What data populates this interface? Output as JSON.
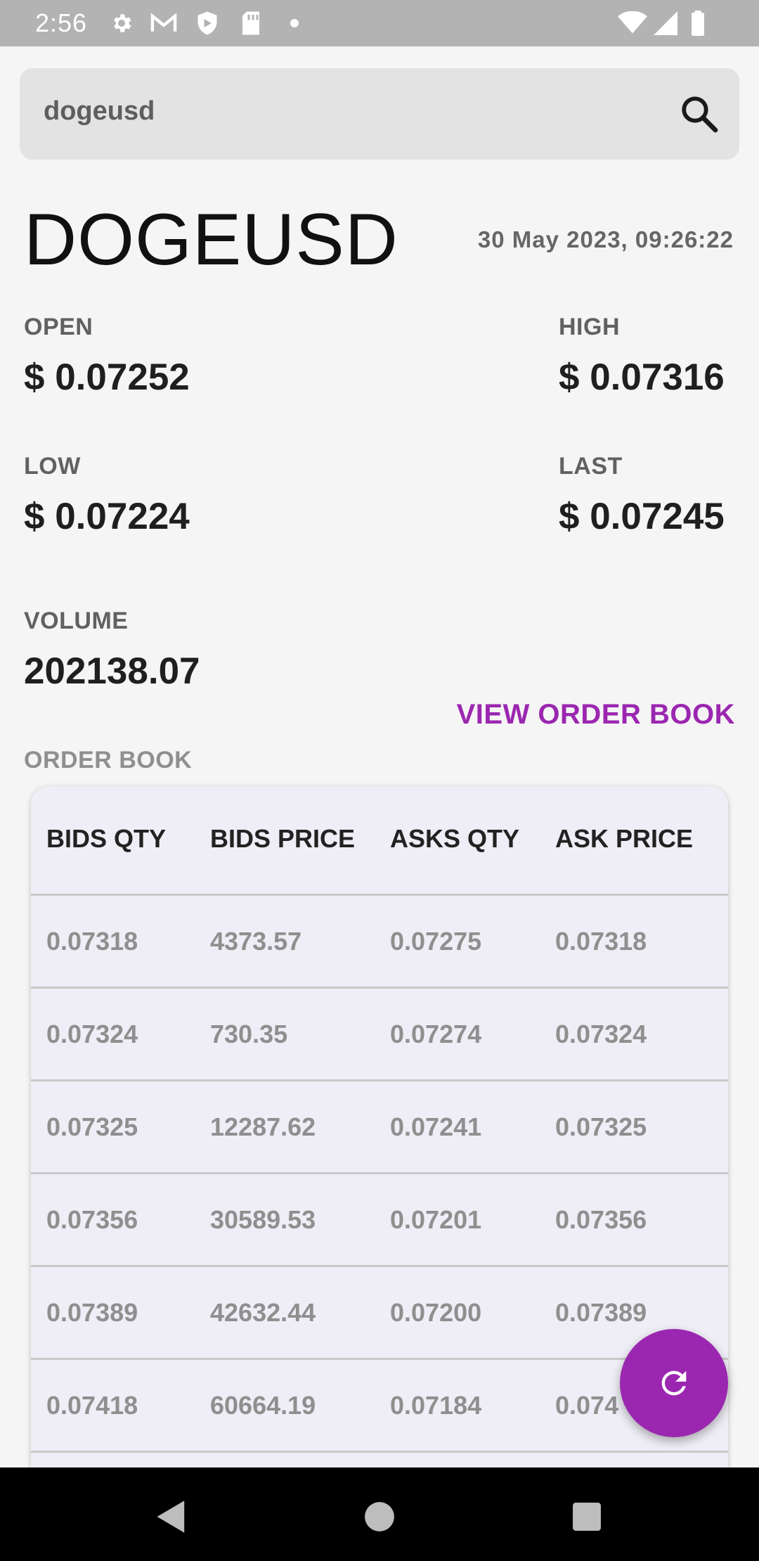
{
  "status_bar": {
    "time": "2:56",
    "icons": [
      "settings-icon",
      "gmail-icon",
      "shield-icon",
      "sd-card-icon",
      "dot-icon",
      "wifi-icon",
      "signal-icon",
      "battery-icon"
    ]
  },
  "search": {
    "value": "dogeusd",
    "icon": "search-icon"
  },
  "ticker": {
    "symbol": "DOGEUSD",
    "timestamp": "30 May 2023, 09:26:22",
    "open_label": "OPEN",
    "open_value": "$ 0.07252",
    "high_label": "HIGH",
    "high_value": "$ 0.07316",
    "low_label": "LOW",
    "low_value": "$ 0.07224",
    "last_label": "LAST",
    "last_value": "$ 0.07245",
    "volume_label": "VOLUME",
    "volume_value": "202138.07"
  },
  "actions": {
    "view_order_book": "VIEW ORDER BOOK"
  },
  "order_book": {
    "section_label": "ORDER BOOK",
    "headers": [
      "BIDS QTY",
      "BIDS PRICE",
      "ASKS QTY",
      "ASK PRICE"
    ],
    "rows": [
      [
        "0.07318",
        "4373.57",
        "0.07275",
        "0.07318"
      ],
      [
        "0.07324",
        "730.35",
        "0.07274",
        "0.07324"
      ],
      [
        "0.07325",
        "12287.62",
        "0.07241",
        "0.07325"
      ],
      [
        "0.07356",
        "30589.53",
        "0.07201",
        "0.07356"
      ],
      [
        "0.07389",
        "42632.44",
        "0.07200",
        "0.07389"
      ],
      [
        "0.07418",
        "60664.19",
        "0.07184",
        "0.074"
      ]
    ]
  },
  "fab": {
    "icon": "refresh-icon"
  },
  "colors": {
    "accent": "#9b27b0",
    "status_bar": "#b3b3b3",
    "nav_bar": "#000000"
  }
}
